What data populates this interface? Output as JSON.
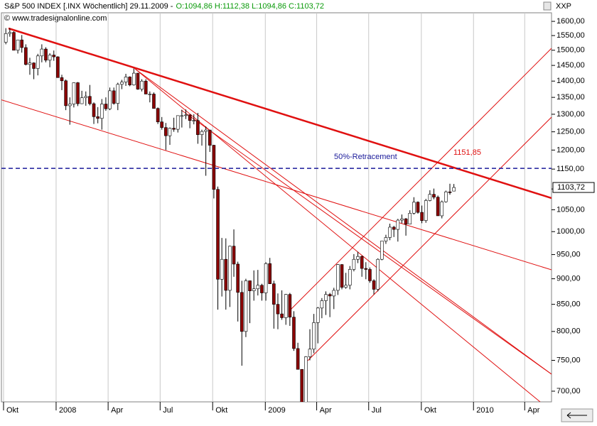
{
  "chart_data": {
    "type": "candlestick",
    "title": "S&P 500 INDEX [.INX  Wöchentlich] 29.11.2009 -",
    "ohlc_text": "O:1094,86 H:1112,38 L:1094,86 C:1103,72",
    "source": "© www.tradesignalonline.com",
    "axis_name": "XXP",
    "log_scale": true,
    "up_color": "#ffffff",
    "down_color": "#8b0000",
    "xlim": [
      -1.1,
      136.4
    ],
    "xticks": [
      {
        "value": -0.57,
        "label": "Okt"
      },
      {
        "value": 12.57,
        "label": "2008"
      },
      {
        "value": 25.57,
        "label": "Apr"
      },
      {
        "value": 38.57,
        "label": "Jul"
      },
      {
        "value": 51.7,
        "label": "Okt"
      },
      {
        "value": 64.86,
        "label": "2009"
      },
      {
        "value": 77.7,
        "label": "Apr"
      },
      {
        "value": 90.7,
        "label": "Jul"
      },
      {
        "value": 103.86,
        "label": "Okt"
      },
      {
        "value": 116.9,
        "label": "2010"
      },
      {
        "value": 129.7,
        "label": "Apr"
      }
    ],
    "ylim": [
      683.5,
      1631
    ],
    "yticks": [
      {
        "value": 700,
        "label": "700,00"
      },
      {
        "value": 750,
        "label": "750,00"
      },
      {
        "value": 800,
        "label": "800,00"
      },
      {
        "value": 850,
        "label": "850,00"
      },
      {
        "value": 900,
        "label": "900,00"
      },
      {
        "value": 950,
        "label": "950,00"
      },
      {
        "value": 1000,
        "label": "1000,00"
      },
      {
        "value": 1050,
        "label": "1050,00"
      },
      {
        "value": 1100,
        "label": "1100,00"
      },
      {
        "value": 1150,
        "label": "1150,00"
      },
      {
        "value": 1200,
        "label": "1200,00"
      },
      {
        "value": 1250,
        "label": "1250,00"
      },
      {
        "value": 1300,
        "label": "1300,00"
      },
      {
        "value": 1350,
        "label": "1350,00"
      },
      {
        "value": 1400,
        "label": "1400,00"
      },
      {
        "value": 1450,
        "label": "1450,00"
      },
      {
        "value": 1500,
        "label": "1500,00"
      },
      {
        "value": 1550,
        "label": "1550,00"
      },
      {
        "value": 1600,
        "label": "1600,00"
      }
    ],
    "retracement": {
      "label": "50%-Retracement",
      "value": 1151.85,
      "value_label": "1151,85",
      "color": "#1a1a9a"
    },
    "last_label": "1103,72",
    "open": [
      1527,
      1557,
      1561,
      1500,
      1535,
      1509,
      1453,
      1458,
      1440,
      1481,
      1504,
      1467,
      1484,
      1478,
      1411,
      1401,
      1325,
      1330,
      1395,
      1331,
      1349,
      1353,
      1331,
      1293,
      1288,
      1330,
      1316,
      1370,
      1332,
      1390,
      1397,
      1413,
      1388,
      1425,
      1375,
      1400,
      1360,
      1360,
      1317,
      1278,
      1262,
      1239,
      1260,
      1257,
      1296,
      1296,
      1298,
      1282,
      1282,
      1242,
      1251,
      1255,
      1213,
      1099,
      899,
      940,
      877,
      968,
      930,
      873,
      800,
      896,
      876,
      880,
      887,
      872,
      931,
      890,
      850,
      832,
      825,
      869,
      826,
      770,
      735,
      683,
      756,
      769,
      816,
      843,
      857,
      869,
      866,
      877,
      929,
      883,
      887,
      919,
      940,
      946,
      921,
      919,
      896,
      879,
      940,
      979,
      987,
      1010,
      1005,
      1026,
      1029,
      1017,
      1042,
      1068,
      1044,
      1025,
      1072,
      1087,
      1080,
      1036,
      1069,
      1093,
      1094.86
    ],
    "high": [
      1576,
      1576,
      1565,
      1535,
      1552,
      1520,
      1475,
      1460,
      1488,
      1520,
      1510,
      1490,
      1499,
      1480,
      1420,
      1405,
      1350,
      1396,
      1397,
      1370,
      1368,
      1388,
      1335,
      1321,
      1345,
      1350,
      1380,
      1380,
      1395,
      1404,
      1423,
      1415,
      1440,
      1426,
      1406,
      1406,
      1368,
      1365,
      1320,
      1292,
      1275,
      1262,
      1290,
      1296,
      1313,
      1314,
      1300,
      1300,
      1304,
      1256,
      1265,
      1255,
      1214,
      1106,
      986,
      985,
      969,
      1005,
      935,
      896,
      900,
      896,
      917,
      918,
      890,
      934,
      943,
      896,
      871,
      877,
      870,
      872,
      837,
      780,
      735,
      757,
      804,
      832,
      845,
      862,
      875,
      872,
      882,
      930,
      930,
      912,
      926,
      951,
      956,
      948,
      934,
      923,
      899,
      942,
      979,
      993,
      1018,
      1013,
      1029,
      1039,
      1031,
      1049,
      1080,
      1070,
      1060,
      1076,
      1097,
      1101,
      1084,
      1072,
      1096,
      1113,
      1112.38
    ],
    "low": [
      1520,
      1546,
      1500,
      1489,
      1492,
      1450,
      1420,
      1406,
      1418,
      1460,
      1460,
      1444,
      1465,
      1411,
      1372,
      1312,
      1270,
      1320,
      1324,
      1330,
      1325,
      1326,
      1272,
      1274,
      1256,
      1310,
      1312,
      1328,
      1312,
      1375,
      1385,
      1384,
      1386,
      1373,
      1368,
      1360,
      1335,
      1317,
      1272,
      1256,
      1200,
      1214,
      1250,
      1248,
      1262,
      1286,
      1260,
      1271,
      1217,
      1212,
      1133,
      1195,
      1077,
      840,
      865,
      840,
      845,
      904,
      818,
      741,
      790,
      815,
      857,
      867,
      857,
      857,
      890,
      805,
      804,
      821,
      812,
      810,
      766,
      735,
      667,
      672,
      750,
      762,
      779,
      824,
      830,
      826,
      841,
      868,
      879,
      880,
      879,
      915,
      932,
      904,
      899,
      892,
      869,
      875,
      938,
      973,
      981,
      988,
      978,
      1019,
      991,
      1017,
      1039,
      1041,
      1019,
      1020,
      1070,
      1075,
      1036,
      1030,
      1067,
      1086,
      1094.86
    ],
    "close": [
      1557,
      1561,
      1500,
      1535,
      1509,
      1453,
      1458,
      1440,
      1481,
      1504,
      1467,
      1484,
      1478,
      1411,
      1401,
      1325,
      1330,
      1395,
      1331,
      1349,
      1353,
      1331,
      1293,
      1288,
      1330,
      1316,
      1370,
      1332,
      1390,
      1397,
      1413,
      1388,
      1425,
      1375,
      1400,
      1360,
      1360,
      1317,
      1278,
      1262,
      1239,
      1260,
      1257,
      1296,
      1296,
      1298,
      1282,
      1282,
      1242,
      1251,
      1255,
      1213,
      1099,
      899,
      940,
      877,
      968,
      930,
      873,
      800,
      896,
      876,
      880,
      887,
      872,
      931,
      890,
      850,
      832,
      825,
      869,
      826,
      770,
      735,
      683,
      756,
      769,
      816,
      843,
      857,
      869,
      866,
      877,
      929,
      883,
      887,
      919,
      940,
      946,
      921,
      919,
      896,
      879,
      940,
      979,
      987,
      1010,
      1005,
      1026,
      1029,
      1017,
      1042,
      1068,
      1044,
      1025,
      1072,
      1087,
      1080,
      1036,
      1069,
      1093,
      1091,
      1103.72
    ]
  }
}
